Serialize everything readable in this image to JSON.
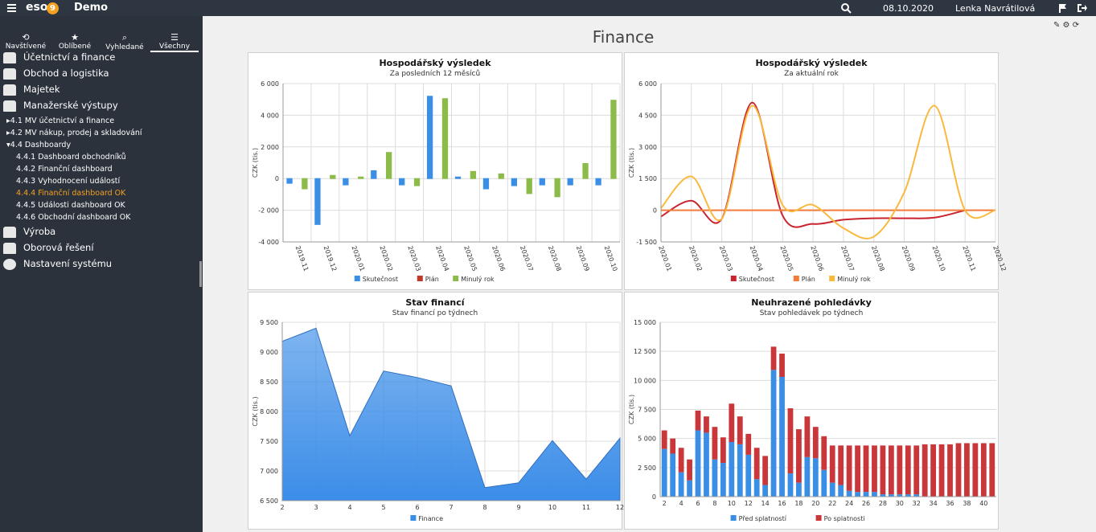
{
  "header": {
    "logo": "eso",
    "logo_badge": "9",
    "app": "Demo",
    "date": "08.10.2020",
    "user": "Lenka Navrátilová"
  },
  "nav": [
    "Navštívené",
    "Oblíbené",
    "Vyhledané",
    "Všechny"
  ],
  "menu": {
    "top1": [
      "Účetnictví a finance",
      "Obchod a logistika",
      "Majetek",
      "Manažerské výstupy"
    ],
    "sub": [
      {
        "number": "4.1",
        "label": "MV účetnictví a finance"
      },
      {
        "number": "4.2",
        "label": "MV nákup, prodej a skladování"
      },
      {
        "number": "4.4",
        "label": "Dashboardy"
      }
    ],
    "subsub": [
      {
        "number": "4.4.1",
        "label": "Dashboard obchodníků"
      },
      {
        "number": "4.4.2",
        "label": "Finanční dashboard"
      },
      {
        "number": "4.4.3",
        "label": "Vyhodnocení událostí"
      },
      {
        "number": "4.4.4",
        "label": "Finanční dashboard OK"
      },
      {
        "number": "4.4.5",
        "label": "Události dashboard OK"
      },
      {
        "number": "4.4.6",
        "label": "Obchodní dashboard OK"
      }
    ],
    "top2": [
      "Výroba",
      "Oborová řešení",
      "Nastavení systému"
    ]
  },
  "page_title": "Finance",
  "chart_data": [
    {
      "type": "bar",
      "title": "Hospodářský výsledek",
      "subtitle": "Za posledních 12 měsíců",
      "y_label": "CZK (tis.)",
      "categories": [
        "2019.11",
        "2019.12",
        "2020.01",
        "2020.02",
        "2020.03",
        "2020.04",
        "2020.05",
        "2020.06",
        "2020.07",
        "2020.08",
        "2020.09",
        "2020.10"
      ],
      "series": [
        {
          "name": "Skutečnost",
          "color": "#3a8ee6",
          "values": [
            -300,
            -2900,
            -400,
            500,
            -400,
            5200,
            100,
            -650,
            -450,
            -400,
            -400,
            -400
          ]
        },
        {
          "name": "Plán",
          "color": "#c0392b",
          "values": [
            0,
            0,
            0,
            0,
            0,
            0,
            0,
            0,
            0,
            0,
            0,
            0
          ]
        },
        {
          "name": "Minulý rok",
          "color": "#8dbb4a",
          "values": [
            -650,
            200,
            100,
            1650,
            -450,
            5050,
            450,
            300,
            -950,
            -1150,
            950,
            4950
          ]
        }
      ],
      "ylim": [
        -4000,
        6000
      ],
      "yticks": [
        {
          "value": -4000,
          "label": "-4 000"
        },
        {
          "value": -2000,
          "label": "-2 000"
        },
        0,
        {
          "value": 2000,
          "label": "2 000"
        },
        {
          "value": 4000,
          "label": "4 000"
        },
        {
          "value": 6000,
          "label": "6 000"
        }
      ],
      "grid": true
    },
    {
      "type": "line",
      "title": "Hospodářský výsledek",
      "subtitle": "Za aktuální rok",
      "y_label": "CZK (tis.)",
      "categories": [
        "2020.01",
        "2020.02",
        "2020.03",
        "2020.04",
        "2020.05",
        "2020.06",
        "2020.07",
        "2020.08",
        "2020.09",
        "2020.10",
        "2020.11",
        "2020.12"
      ],
      "series": [
        {
          "name": "Skutečnost",
          "color": "#c9242f",
          "values": [
            -300,
            450,
            -400,
            5100,
            -250,
            -650,
            -450,
            -380,
            -380,
            -350,
            0,
            null
          ]
        },
        {
          "name": "Plán",
          "color": "#f47a3a",
          "values": [
            0,
            0,
            0,
            0,
            0,
            0,
            0,
            0,
            0,
            0,
            0,
            0
          ]
        },
        {
          "name": "Minulý rok",
          "color": "#f9b93c",
          "values": [
            100,
            1600,
            -400,
            4950,
            250,
            250,
            -850,
            -1250,
            850,
            4950,
            0,
            0
          ]
        }
      ],
      "ylim": [
        -1500,
        6000
      ],
      "yticks": [
        {
          "value": -1500,
          "label": "-1 500"
        },
        0,
        {
          "value": 1500,
          "label": "1 500"
        },
        {
          "value": 3000,
          "label": "3 000"
        },
        {
          "value": 4500,
          "label": "4 500"
        },
        {
          "value": 6000,
          "label": "6 000"
        }
      ],
      "grid": true
    },
    {
      "type": "area",
      "title": "Stav financí",
      "subtitle": "Stav financí po týdnech",
      "y_label": "CZK (tis.)",
      "x": [
        2,
        3,
        4,
        5,
        6,
        7,
        8,
        9,
        10,
        11,
        12
      ],
      "series": [
        {
          "name": "Finance",
          "color": "#3b8de8",
          "values": [
            9180,
            9400,
            7590,
            8680,
            8570,
            8430,
            6720,
            6800,
            7510,
            6860,
            7550
          ]
        }
      ],
      "xlim": [
        2,
        12
      ],
      "xticks": [
        2,
        3,
        4,
        5,
        6,
        7,
        8,
        9,
        10,
        11,
        12
      ],
      "ylim": [
        6500,
        9500
      ],
      "yticks": [
        {
          "value": 6500,
          "label": "6 500"
        },
        {
          "value": 7000,
          "label": "7 000"
        },
        {
          "value": 7500,
          "label": "7 500"
        },
        {
          "value": 8000,
          "label": "8 000"
        },
        {
          "value": 8500,
          "label": "8 500"
        },
        {
          "value": 9000,
          "label": "9 000"
        },
        {
          "value": 9500,
          "label": "9 500"
        }
      ],
      "grid": true
    },
    {
      "type": "stacked_bar",
      "title": "Neuhrazené pohledávky",
      "subtitle": "Stav pohledávek po týdnech",
      "y_label": "CZK (tis.)",
      "categories": [
        2,
        null,
        4,
        null,
        6,
        null,
        8,
        null,
        10,
        null,
        12,
        null,
        14,
        null,
        16,
        null,
        18,
        null,
        20,
        null,
        22,
        null,
        24,
        null,
        26,
        null,
        28,
        null,
        30,
        null,
        32,
        null,
        34,
        null,
        36,
        null,
        38,
        null,
        40,
        null
      ],
      "series": [
        {
          "name": "Před splatností",
          "color": "#3a8ee6",
          "values": [
            4100,
            3700,
            2100,
            1400,
            5700,
            5500,
            3200,
            2900,
            4700,
            4500,
            3600,
            1500,
            1000,
            10900,
            10300,
            2000,
            1200,
            3400,
            3300,
            2300,
            1200,
            1000,
            500,
            400,
            400,
            400,
            200,
            200,
            200,
            200,
            200,
            0,
            0,
            0,
            0,
            0,
            0,
            0,
            0,
            0
          ]
        },
        {
          "name": "Po splatnosti",
          "color": "#c9373a",
          "values": [
            1600,
            1300,
            2100,
            1800,
            1700,
            1400,
            2800,
            2200,
            3300,
            2400,
            1800,
            2700,
            2500,
            2000,
            2000,
            5600,
            4600,
            3500,
            2700,
            2900,
            3200,
            3400,
            3900,
            4000,
            4000,
            4000,
            4200,
            4200,
            4200,
            4200,
            4200,
            4500,
            4500,
            4500,
            4500,
            4600,
            4600,
            4600,
            4600,
            4600
          ]
        }
      ],
      "ylim": [
        0,
        15000
      ],
      "yticks": [
        0,
        {
          "value": 2500,
          "label": "2 500"
        },
        {
          "value": 5000,
          "label": "5 000"
        },
        {
          "value": 7500,
          "label": "7 500"
        },
        {
          "value": 10000,
          "label": "10 000"
        },
        {
          "value": 12500,
          "label": "12 500"
        },
        {
          "value": 15000,
          "label": "15 000"
        }
      ],
      "grid": true
    }
  ]
}
